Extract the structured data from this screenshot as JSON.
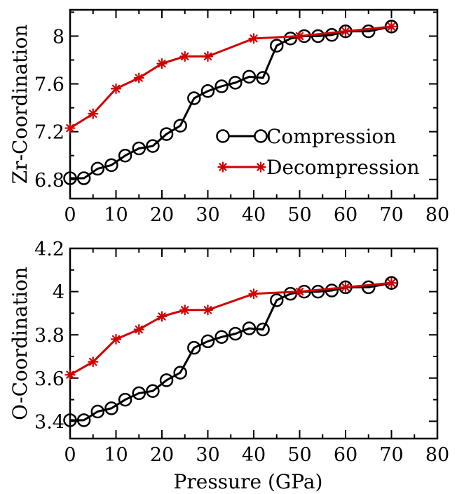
{
  "chart_data": [
    {
      "type": "line",
      "title": "",
      "xlabel": "",
      "ylabel": "Zr-Coordination",
      "xlim": [
        0,
        80
      ],
      "ylim": [
        6.64,
        8.22
      ],
      "xticks": [
        0,
        10,
        20,
        30,
        40,
        50,
        60,
        70,
        80
      ],
      "yticks": [
        6.8,
        7.2,
        7.6,
        8.0
      ],
      "ytick_labels": [
        "6.8",
        "7.2",
        "7.6",
        "8"
      ],
      "legend_position": "center-right",
      "series": [
        {
          "name": "Compression",
          "color": "#000000",
          "marker": "open-circle",
          "x": [
            0,
            3,
            6,
            9,
            12,
            15,
            18,
            21,
            24,
            27,
            30,
            33,
            36,
            39,
            42,
            45,
            48,
            51,
            54,
            57,
            60,
            65,
            70
          ],
          "y": [
            6.81,
            6.81,
            6.89,
            6.92,
            7.0,
            7.06,
            7.08,
            7.18,
            7.25,
            7.48,
            7.54,
            7.58,
            7.61,
            7.66,
            7.65,
            7.92,
            7.98,
            8.0,
            8.0,
            8.01,
            8.04,
            8.04,
            8.08
          ]
        },
        {
          "name": "Decompression",
          "color": "#d10000",
          "marker": "asterisk",
          "x": [
            0,
            5,
            10,
            15,
            20,
            25,
            30,
            40,
            50,
            60,
            70
          ],
          "y": [
            7.23,
            7.35,
            7.56,
            7.65,
            7.77,
            7.83,
            7.83,
            7.98,
            8.0,
            8.04,
            8.08
          ]
        }
      ]
    },
    {
      "type": "line",
      "title": "",
      "xlabel": "Pressure (GPa)",
      "ylabel": "O-Coordination",
      "xlim": [
        0,
        80
      ],
      "ylim": [
        3.32,
        4.2
      ],
      "xticks": [
        0,
        10,
        20,
        30,
        40,
        50,
        60,
        70,
        80
      ],
      "yticks": [
        3.4,
        3.6,
        3.8,
        4.0,
        4.2
      ],
      "ytick_labels": [
        "3.4",
        "3.6",
        "3.8",
        "4",
        "4.2"
      ],
      "series": [
        {
          "name": "Compression",
          "color": "#000000",
          "marker": "open-circle",
          "x": [
            0,
            3,
            6,
            9,
            12,
            15,
            18,
            21,
            24,
            27,
            30,
            33,
            36,
            39,
            42,
            45,
            48,
            51,
            54,
            57,
            60,
            65,
            70
          ],
          "y": [
            3.405,
            3.405,
            3.445,
            3.46,
            3.5,
            3.53,
            3.54,
            3.59,
            3.625,
            3.74,
            3.77,
            3.79,
            3.805,
            3.83,
            3.825,
            3.96,
            3.99,
            4.0,
            4.0,
            4.005,
            4.02,
            4.02,
            4.04
          ]
        },
        {
          "name": "Decompression",
          "color": "#d10000",
          "marker": "asterisk",
          "x": [
            0,
            5,
            10,
            15,
            20,
            25,
            30,
            40,
            50,
            60,
            70
          ],
          "y": [
            3.615,
            3.675,
            3.78,
            3.825,
            3.885,
            3.915,
            3.915,
            3.99,
            4.0,
            4.02,
            4.04
          ]
        }
      ]
    }
  ]
}
